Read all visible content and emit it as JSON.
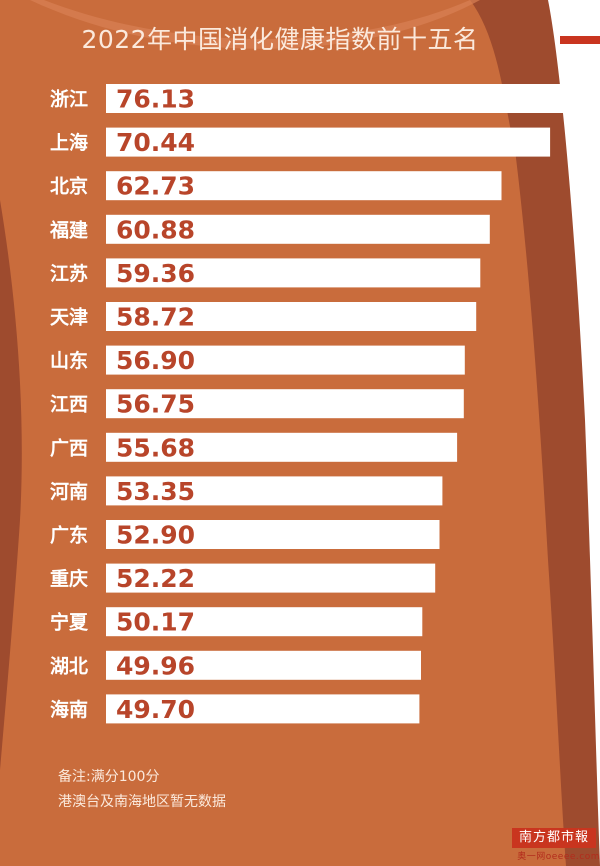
{
  "chart_data": {
    "type": "bar",
    "orientation": "horizontal",
    "title": "2022年中国消化健康指数前十五名",
    "categories": [
      "浙江",
      "上海",
      "北京",
      "福建",
      "江苏",
      "天津",
      "山东",
      "江西",
      "广西",
      "河南",
      "广东",
      "重庆",
      "宁夏",
      "湖北",
      "海南"
    ],
    "values": [
      76.13,
      70.44,
      62.73,
      60.88,
      59.36,
      58.72,
      56.9,
      56.75,
      55.68,
      53.35,
      52.9,
      52.22,
      50.17,
      49.96,
      49.7
    ],
    "value_labels": [
      "76.13",
      "70.44",
      "62.73",
      "60.88",
      "59.36",
      "58.72",
      "56.90",
      "56.75",
      "55.68",
      "53.35",
      "52.90",
      "52.22",
      "50.17",
      "49.96",
      "49.70"
    ],
    "xlabel": "",
    "ylabel": "",
    "grid": false
  },
  "notes": {
    "line1": "备注:满分100分",
    "line2": "港澳台及南海地区暂无数据"
  },
  "logo": {
    "name": "南方都市報",
    "sub": "奥一网oeeee.com"
  },
  "colors": {
    "outer_band": "#9e4b2e",
    "inner_panel": "#c96c3c",
    "bar_fill": "#ffffff",
    "value_text": "#b8452a",
    "category_text": "#ffffff",
    "accent_red": "#c9351f"
  }
}
